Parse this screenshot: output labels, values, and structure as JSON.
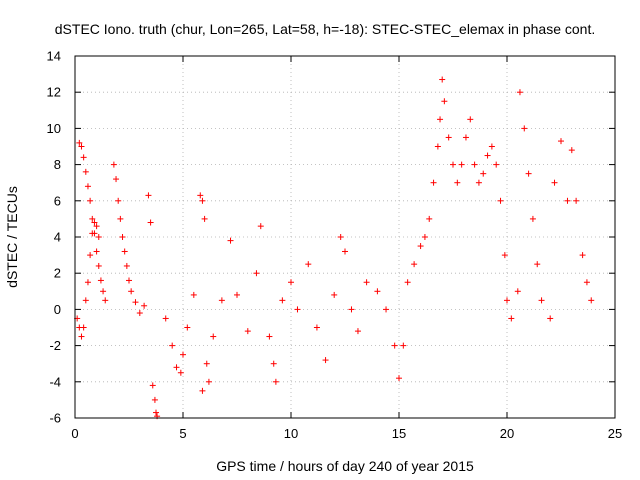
{
  "chart_data": {
    "type": "scatter",
    "title": "dSTEC Iono. truth (chur, Lon=265, Lat=58, h=-18): STEC-STEC_elemax in phase cont.",
    "xlabel": "GPS time / hours of day 240 of year 2015",
    "ylabel": "dSTEC  / TECUs",
    "xlim": [
      0,
      25
    ],
    "ylim": [
      -6,
      14
    ],
    "xticks": [
      0,
      5,
      10,
      15,
      20,
      25
    ],
    "yticks": [
      -6,
      -4,
      -2,
      0,
      2,
      4,
      6,
      8,
      10,
      12,
      14
    ],
    "grid": true,
    "marker": "+",
    "color": "#ff0000",
    "series": [
      {
        "name": "",
        "description_points": [
          [
            0.2,
            9.2
          ],
          [
            0.3,
            9.0
          ],
          [
            0.4,
            8.4
          ],
          [
            0.5,
            7.6
          ],
          [
            0.6,
            6.8
          ],
          [
            0.7,
            6.0
          ],
          [
            0.8,
            5.0
          ],
          [
            0.9,
            4.2
          ],
          [
            1.0,
            3.2
          ],
          [
            1.1,
            2.4
          ],
          [
            1.2,
            1.6
          ],
          [
            1.3,
            1.0
          ],
          [
            1.4,
            0.5
          ],
          [
            0.1,
            -0.5
          ],
          [
            0.2,
            -1.0
          ],
          [
            0.3,
            -1.5
          ],
          [
            0.4,
            -1.0
          ],
          [
            0.5,
            0.5
          ],
          [
            0.6,
            1.5
          ],
          [
            0.7,
            3.0
          ],
          [
            0.8,
            4.2
          ],
          [
            0.9,
            4.8
          ],
          [
            1.0,
            4.6
          ],
          [
            1.1,
            4.0
          ],
          [
            1.8,
            8.0
          ],
          [
            1.9,
            7.2
          ],
          [
            2.0,
            6.0
          ],
          [
            2.1,
            5.0
          ],
          [
            2.2,
            4.0
          ],
          [
            2.3,
            3.2
          ],
          [
            2.4,
            2.4
          ],
          [
            2.5,
            1.6
          ],
          [
            2.6,
            1.0
          ],
          [
            2.8,
            0.4
          ],
          [
            3.0,
            -0.2
          ],
          [
            3.2,
            0.2
          ],
          [
            3.4,
            6.3
          ],
          [
            3.5,
            4.8
          ],
          [
            3.6,
            -4.2
          ],
          [
            3.7,
            -5.0
          ],
          [
            3.75,
            -5.7
          ],
          [
            3.8,
            -5.9
          ],
          [
            4.2,
            -0.5
          ],
          [
            4.5,
            -2.0
          ],
          [
            4.7,
            -3.2
          ],
          [
            4.9,
            -3.5
          ],
          [
            5.0,
            -2.5
          ],
          [
            5.2,
            -1.0
          ],
          [
            5.5,
            0.8
          ],
          [
            5.8,
            6.3
          ],
          [
            5.9,
            6.0
          ],
          [
            6.0,
            5.0
          ],
          [
            6.1,
            -3.0
          ],
          [
            6.2,
            -4.0
          ],
          [
            5.9,
            -4.5
          ],
          [
            6.4,
            -1.5
          ],
          [
            6.8,
            0.5
          ],
          [
            7.2,
            3.8
          ],
          [
            7.5,
            0.8
          ],
          [
            8.0,
            -1.2
          ],
          [
            8.4,
            2.0
          ],
          [
            8.6,
            4.6
          ],
          [
            9.0,
            -1.5
          ],
          [
            9.2,
            -3.0
          ],
          [
            9.3,
            -4.0
          ],
          [
            9.6,
            0.5
          ],
          [
            10.0,
            1.5
          ],
          [
            10.3,
            0.0
          ],
          [
            10.8,
            2.5
          ],
          [
            11.2,
            -1.0
          ],
          [
            11.6,
            -2.8
          ],
          [
            12.0,
            0.8
          ],
          [
            12.3,
            4.0
          ],
          [
            12.5,
            3.2
          ],
          [
            12.8,
            0.0
          ],
          [
            13.1,
            -1.2
          ],
          [
            13.5,
            1.5
          ],
          [
            14.0,
            1.0
          ],
          [
            14.4,
            0.0
          ],
          [
            14.8,
            -2.0
          ],
          [
            15.0,
            -3.8
          ],
          [
            15.2,
            -2.0
          ],
          [
            15.4,
            1.5
          ],
          [
            15.7,
            2.5
          ],
          [
            16.0,
            3.5
          ],
          [
            16.2,
            4.0
          ],
          [
            16.4,
            5.0
          ],
          [
            16.6,
            7.0
          ],
          [
            16.8,
            9.0
          ],
          [
            16.9,
            10.5
          ],
          [
            17.0,
            12.7
          ],
          [
            17.1,
            11.5
          ],
          [
            17.3,
            9.5
          ],
          [
            17.5,
            8.0
          ],
          [
            17.7,
            7.0
          ],
          [
            17.9,
            8.0
          ],
          [
            18.1,
            9.5
          ],
          [
            18.3,
            10.5
          ],
          [
            18.5,
            8.0
          ],
          [
            18.7,
            7.0
          ],
          [
            18.9,
            7.5
          ],
          [
            19.1,
            8.5
          ],
          [
            19.3,
            9.0
          ],
          [
            19.5,
            8.0
          ],
          [
            19.7,
            6.0
          ],
          [
            19.9,
            3.0
          ],
          [
            20.0,
            0.5
          ],
          [
            20.2,
            -0.5
          ],
          [
            20.5,
            1.0
          ],
          [
            20.6,
            12.0
          ],
          [
            20.8,
            10.0
          ],
          [
            21.0,
            7.5
          ],
          [
            21.2,
            5.0
          ],
          [
            21.4,
            2.5
          ],
          [
            21.6,
            0.5
          ],
          [
            22.0,
            -0.5
          ],
          [
            22.2,
            7.0
          ],
          [
            22.5,
            9.3
          ],
          [
            22.8,
            6.0
          ],
          [
            23.0,
            8.8
          ],
          [
            23.2,
            6.0
          ],
          [
            23.5,
            3.0
          ],
          [
            23.7,
            1.5
          ],
          [
            23.9,
            0.5
          ]
        ]
      }
    ]
  }
}
